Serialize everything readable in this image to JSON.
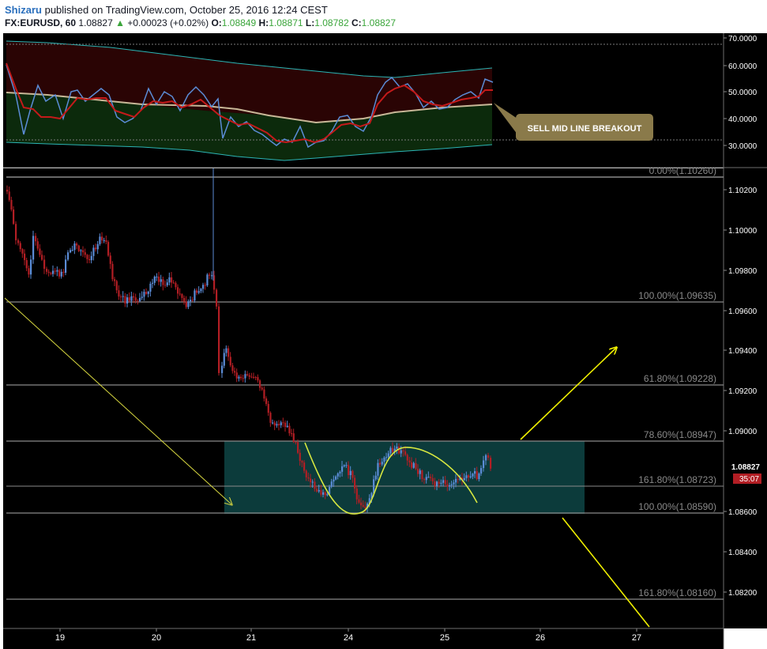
{
  "header": {
    "author": "Shizaru",
    "published": "published on TradingView.com, October 25, 2016 12:24 CEST",
    "symbol": "FX:EURUSD, 60",
    "last": "1.08827",
    "change_arrow": "▲",
    "change": "+0.00023 (+0.02%)",
    "o_label": "O:",
    "o": "1.08849",
    "h_label": "H:",
    "h": "1.08871",
    "l_label": "L:",
    "l": "1.08782",
    "c_label": "C:",
    "c": "1.08827"
  },
  "oscillator": {
    "axis_labels": [
      "70.0000",
      "60.0000",
      "50.0000",
      "40.0000",
      "30.0000"
    ],
    "callout": "SELL MID LINE BREAKOUT"
  },
  "price_axis": {
    "labels": [
      "1.10200",
      "1.10000",
      "1.09800",
      "1.09600",
      "1.09400",
      "1.09200",
      "1.09000",
      "1.08600",
      "1.08400",
      "1.08200"
    ],
    "current_price": "1.08827",
    "countdown": "35:07"
  },
  "fib_levels": [
    {
      "label": "0.00%(1.10260)"
    },
    {
      "label": "100.00%(1.09635)"
    },
    {
      "label": "61.80%(1.09228)"
    },
    {
      "label": "78.60%(1.08947)"
    },
    {
      "label": "161.80%(1.08723)"
    },
    {
      "label": "100.00%(1.08590)"
    },
    {
      "label": "161.80%(1.08160)"
    }
  ],
  "time_axis": {
    "labels": [
      "19",
      "20",
      "21",
      "24",
      "25",
      "26",
      "27"
    ]
  },
  "colors": {
    "background": "#000000",
    "bull_candle": "#5b8cd6",
    "bear_candle": "#b21e24",
    "fib_line": "#8a8a8a",
    "box_fill": "#0c3b3b",
    "arrow": "#f0f000",
    "callout_bg": "#8a7a4a"
  }
}
